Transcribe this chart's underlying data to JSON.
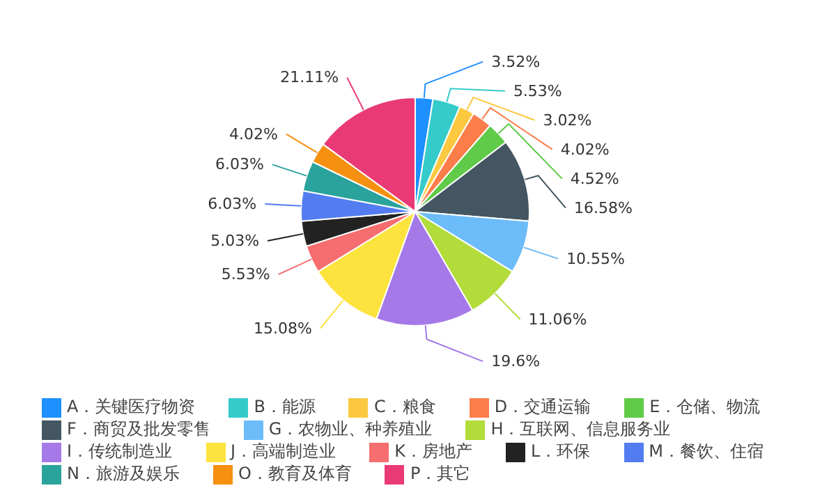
{
  "chart_data": {
    "type": "pie",
    "categories": [
      "A．关键医疗物资",
      "B．能源",
      "C．粮食",
      "D．交通运输",
      "E．仓储、物流",
      "F．商贸及批发零售",
      "G．农物业、种养殖业",
      "H．互联网、信息服务业",
      "I．传统制造业",
      "J．高端制造业",
      "K．房地产",
      "L．环保",
      "M．餐饮、住宿",
      "N．旅游及娱乐",
      "O．教育及体育",
      "P．其它"
    ],
    "values": [
      3.52,
      5.53,
      3.02,
      4.02,
      4.52,
      16.58,
      10.55,
      11.06,
      19.6,
      15.08,
      5.53,
      5.03,
      6.03,
      6.03,
      4.02,
      21.11
    ],
    "value_labels": [
      "3.52%",
      "5.53%",
      "3.02%",
      "4.02%",
      "4.52%",
      "16.58%",
      "10.55%",
      "11.06%",
      "19.6%",
      "15.08%",
      "5.53%",
      "5.03%",
      "6.03%",
      "6.03%",
      "4.02%",
      "21.11%"
    ],
    "colors": [
      "#1e90ff",
      "#36cbcb",
      "#fbc83f",
      "#fb7d4a",
      "#5fcb48",
      "#435662",
      "#6cbcf9",
      "#b2dc3a",
      "#a579e8",
      "#fde33d",
      "#f56d6f",
      "#222222",
      "#537cf0",
      "#2aa39c",
      "#f59010",
      "#e93a76"
    ],
    "legend": "bottom"
  }
}
